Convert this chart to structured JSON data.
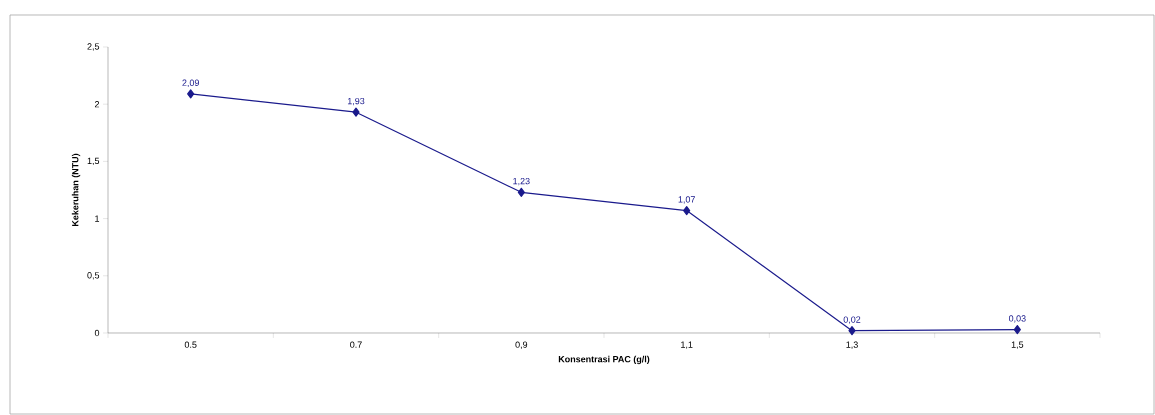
{
  "chart_data": {
    "type": "line",
    "xlabel": "Konsentrasi PAC (g/l)",
    "ylabel": "Kekeruhan (NTU)",
    "categories": [
      "0.5",
      "0.7",
      "0,9",
      "1,1",
      "1,3",
      "1,5"
    ],
    "values": [
      2.09,
      1.93,
      1.23,
      1.07,
      0.02,
      0.03
    ],
    "value_labels": [
      "2,09",
      "1,93",
      "1,23",
      "1,07",
      "0,02",
      "0,03"
    ],
    "color": "#1a1a8c",
    "marker": "diamond",
    "line_style": "solid",
    "ylim": [
      0,
      2.5
    ],
    "yticks": [
      0,
      {
        "value": 0.5,
        "label": "0,5"
      },
      1,
      {
        "value": 1.5,
        "label": "1,5"
      },
      2,
      {
        "value": 2.5,
        "label": "2,5"
      }
    ]
  }
}
